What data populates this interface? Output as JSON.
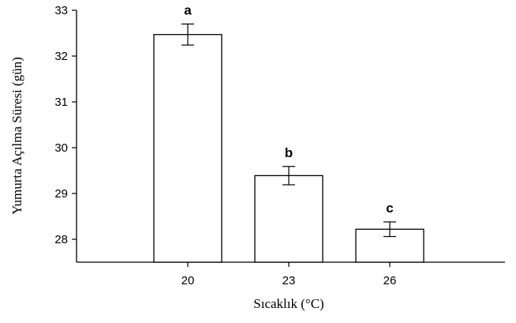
{
  "chart_data": {
    "type": "bar",
    "title": "",
    "xlabel": "Sıcaklık (°C)",
    "ylabel": "Yumurta Açılma Süresi (gün)",
    "categories": [
      "20",
      "23",
      "26"
    ],
    "values": [
      32.47,
      29.39,
      28.22
    ],
    "errors": [
      0.23,
      0.2,
      0.16
    ],
    "group_letters": [
      "a",
      "b",
      "c"
    ],
    "ylim": [
      27.5,
      33
    ],
    "yticks": [
      28,
      29,
      30,
      31,
      32,
      33
    ],
    "grid": false,
    "bar_fill": "#ffffff",
    "bar_stroke": "#000000"
  }
}
